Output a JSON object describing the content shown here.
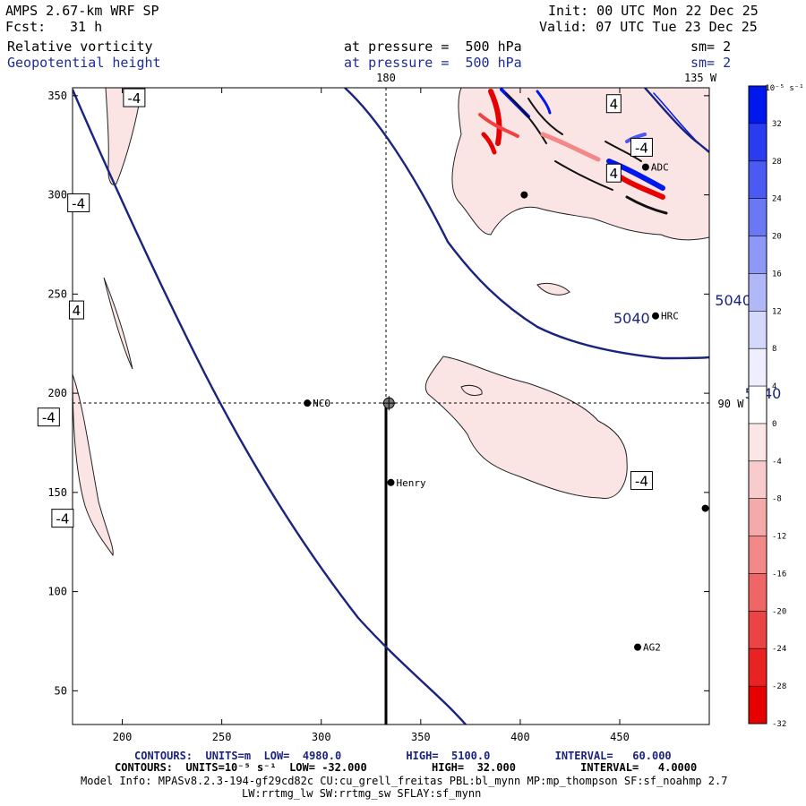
{
  "header": {
    "model": "AMPS 2.67-km WRF SP",
    "forecast_label": "Fcst:",
    "forecast_hours": "31 h",
    "init": "Init: 00 UTC Mon 22 Dec 25",
    "valid": "Valid: 07 UTC Tue 23 Dec 25",
    "field1_name": "Relative vorticity",
    "field1_level": "at pressure =  500 hPa",
    "field1_smooth": "sm= 2",
    "field2_name": "Geopotential height",
    "field2_level": "at pressure =  500 hPa",
    "field2_smooth": "sm= 2"
  },
  "map": {
    "lon_labels": {
      "top_center": "180",
      "top_right": "135 W",
      "right": "90 W"
    },
    "x_ticks": [
      200,
      250,
      300,
      350,
      400,
      450
    ],
    "y_ticks": [
      50,
      100,
      150,
      200,
      250,
      300,
      350
    ],
    "x_range": [
      175,
      495
    ],
    "y_range": [
      33,
      354
    ],
    "height_contours": [
      {
        "label": "5040",
        "label_pos": [
          456,
          238
        ]
      },
      {
        "label": "5040",
        "label_pos": [
          507,
          247
        ]
      },
      {
        "label": "5040",
        "label_pos": [
          522,
          200
        ]
      }
    ],
    "vort_labels": [
      {
        "text": "-4",
        "at": [
          206,
          349
        ]
      },
      {
        "text": "-4",
        "at": [
          178,
          296
        ]
      },
      {
        "text": "4",
        "at": [
          177,
          242
        ]
      },
      {
        "text": "-4",
        "at": [
          163,
          188
        ]
      },
      {
        "text": "-4",
        "at": [
          170,
          137
        ]
      },
      {
        "text": "4",
        "at": [
          447,
          346
        ]
      },
      {
        "text": "-4",
        "at": [
          461,
          324
        ]
      },
      {
        "text": "4",
        "at": [
          447,
          311
        ]
      },
      {
        "text": "-4",
        "at": [
          461,
          156
        ]
      }
    ],
    "stations": [
      {
        "name": "NCO",
        "at": [
          293,
          195
        ]
      },
      {
        "name": "Henry",
        "at": [
          335,
          155
        ]
      },
      {
        "name": "HRC",
        "at": [
          468,
          239
        ]
      },
      {
        "name": "AG2",
        "at": [
          459,
          72
        ]
      },
      {
        "name": "ADC",
        "at": [
          463,
          314
        ]
      },
      {
        "name": "",
        "at": [
          402,
          300
        ]
      },
      {
        "name": "",
        "at": [
          493,
          142
        ]
      }
    ],
    "pole": [
      334,
      195
    ]
  },
  "colorbar": {
    "unit": "10⁻⁵ s⁻¹",
    "labels": [
      "32",
      "28",
      "24",
      "20",
      "16",
      "12",
      "8",
      "4",
      "0",
      "-4",
      "-8",
      "-12",
      "-16",
      "-20",
      "-24",
      "-28",
      "-32"
    ],
    "colors": [
      "#0018ee",
      "#2a3cf0",
      "#4a5af2",
      "#6a78f4",
      "#8e98f6",
      "#b0b8f8",
      "#d4d8fb",
      "#eeeefe",
      "#ffffff",
      "#fbe6e6",
      "#f8cccc",
      "#f5aaaa",
      "#f28888",
      "#ef6666",
      "#ec4444",
      "#e92222",
      "#e60000"
    ]
  },
  "footer": {
    "height_line": "CONTOURS:  UNITS=m  LOW=  4980.0          HIGH=  5100.0          INTERVAL=   60.000",
    "vort_line": "CONTOURS:  UNITS=10⁻⁵ s⁻¹  LOW= -32.000          HIGH=  32.000          INTERVAL=   4.0000",
    "model_info": "Model Info: MPASv8.2.3-194-gf29cd82c CU:cu_grell_freitas PBL:bl_mynn MP:mp_thompson SF:sf_noahmp 2.7",
    "physics_info": "LW:rrtmg_lw SW:rrtmg_sw SFLAY:sf_mynn"
  }
}
